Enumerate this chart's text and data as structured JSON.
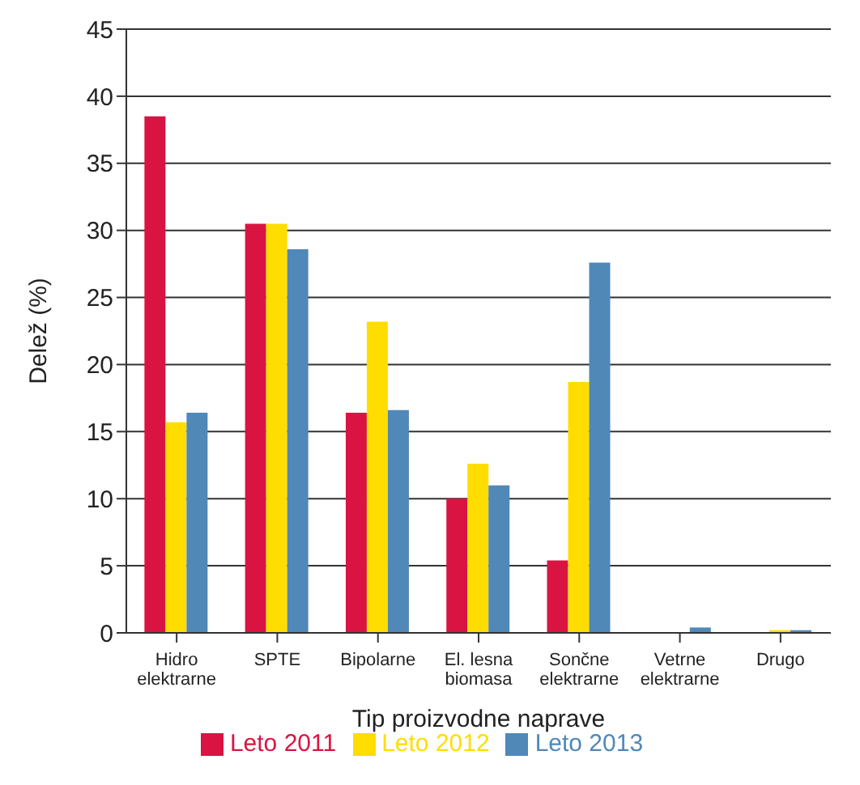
{
  "chart_data": {
    "type": "bar",
    "xlabel": "Tip proizvodne naprave",
    "ylabel": "Delež (%)",
    "categories": [
      "Hidro\nelektrarne",
      "SPTE",
      "Bipolarne",
      "El. lesna\nbiomasa",
      "Sončne\nelektrarne",
      "Vetrne\nelektrarne",
      "Drugo"
    ],
    "series": [
      {
        "name": "Leto 2011",
        "color": "#da1442",
        "values": [
          38.5,
          30.5,
          16.4,
          10.0,
          5.4,
          0,
          0
        ]
      },
      {
        "name": "Leto 2012",
        "color": "#ffdd00",
        "values": [
          15.7,
          30.5,
          23.2,
          12.6,
          18.7,
          0,
          0.2
        ]
      },
      {
        "name": "Leto 2013",
        "color": "#5088b8",
        "values": [
          16.4,
          28.6,
          16.6,
          11.0,
          27.6,
          0.4,
          0.2
        ]
      }
    ],
    "ylim": [
      0,
      45
    ],
    "yticks": [
      0,
      5,
      10,
      15,
      20,
      25,
      30,
      35,
      40,
      45
    ],
    "grid": "y",
    "legend": "bottom"
  }
}
